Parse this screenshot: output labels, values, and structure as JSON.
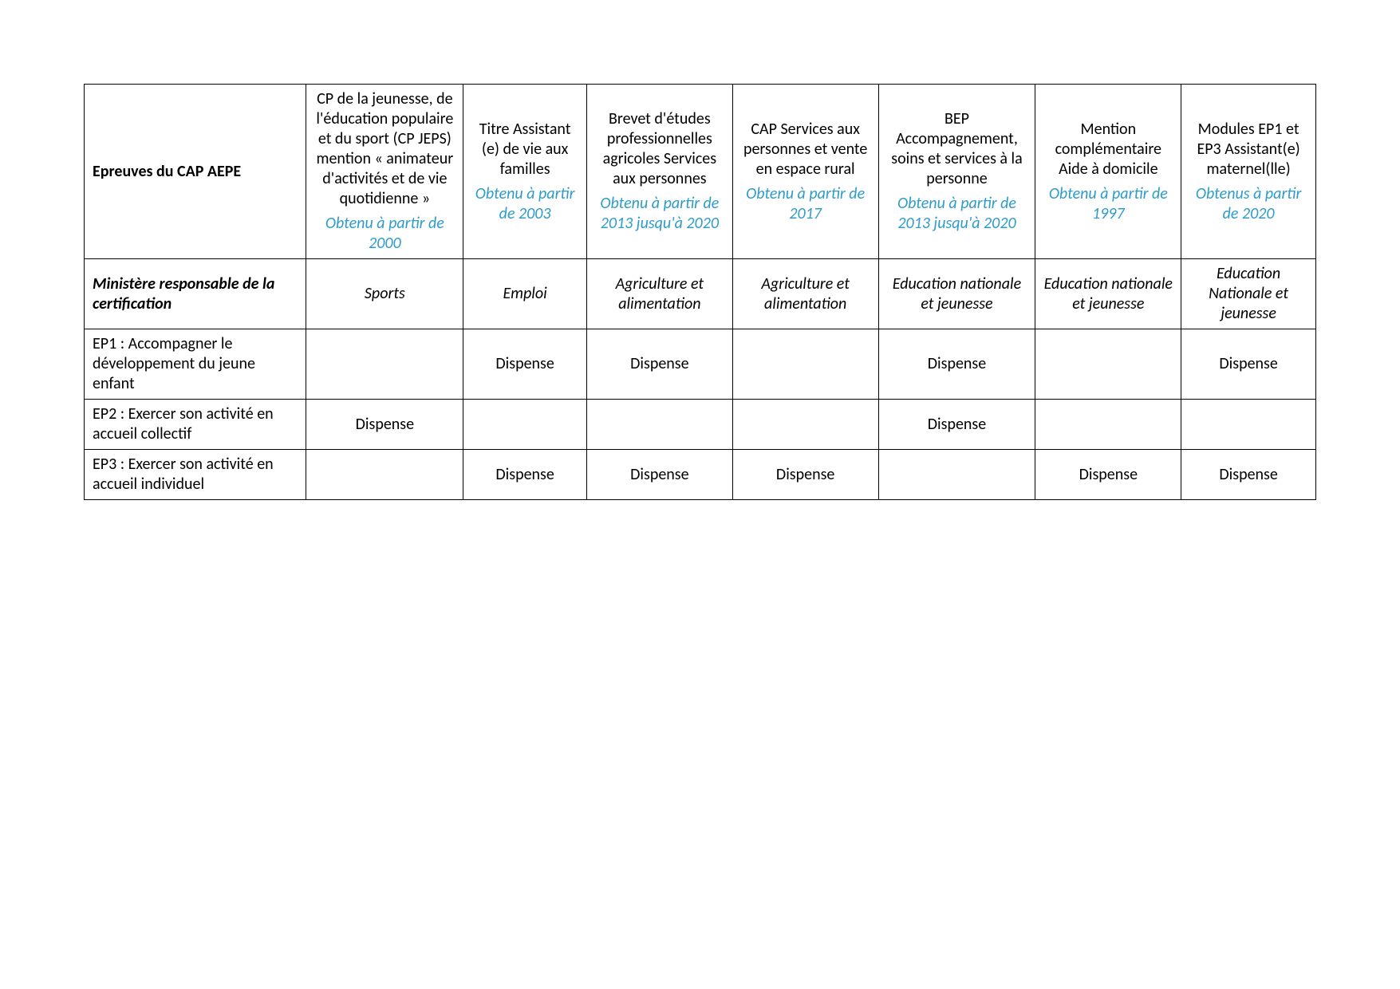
{
  "colors": {
    "accent": "#2E9CCA",
    "text": "#000000",
    "border": "#000000",
    "background": "#ffffff"
  },
  "table": {
    "header_row": {
      "leftmost": "Epreuves du CAP AEPE",
      "cols": [
        {
          "title": "CP de la jeunesse, de l'éducation populaire et du sport (CP JEPS) mention « animateur d'activités et de vie quotidienne »",
          "obtained": "Obtenu à partir de 2000"
        },
        {
          "title": "Titre Assistant (e) de vie aux familles",
          "obtained": "Obtenu à partir de 2003"
        },
        {
          "title": "Brevet d'études professionnelles agricoles Services aux personnes",
          "obtained": "Obtenu à partir de 2013 jusqu'à 2020"
        },
        {
          "title": "CAP Services aux personnes et vente en espace rural",
          "obtained": "Obtenu à partir de 2017"
        },
        {
          "title": "BEP Accompagnement, soins et services à la personne",
          "obtained": "Obtenu à partir de 2013 jusqu'à 2020"
        },
        {
          "title": "Mention complémentaire Aide à domicile",
          "obtained": "Obtenu à partir de 1997"
        },
        {
          "title": "Modules EP1 et EP3 Assistant(e) maternel(lle)",
          "obtained": "Obtenus à partir de 2020"
        }
      ]
    },
    "rows": [
      {
        "label": "Ministère responsable de la certification",
        "style": "bold-italic",
        "cells": [
          "Sports",
          "Emploi",
          "Agriculture et alimentation",
          "Agriculture et alimentation",
          "Education nationale et jeunesse",
          "Education nationale et jeunesse",
          "Education Nationale et jeunesse"
        ],
        "cell_style": "italic"
      },
      {
        "label": "EP1 : Accompagner le développement du jeune enfant",
        "style": "normal",
        "cells": [
          "",
          "Dispense",
          "Dispense",
          "",
          "Dispense",
          "",
          "Dispense"
        ],
        "cell_style": "normal"
      },
      {
        "label": "EP2 : Exercer son activité en accueil collectif",
        "style": "normal",
        "cells": [
          "Dispense",
          "",
          "",
          "",
          "Dispense",
          "",
          ""
        ],
        "cell_style": "normal"
      },
      {
        "label": "EP3 : Exercer son activité en accueil individuel",
        "style": "normal",
        "cells": [
          "",
          "Dispense",
          "Dispense",
          "Dispense",
          "",
          "Dispense",
          "Dispense"
        ],
        "cell_style": "normal"
      }
    ]
  }
}
